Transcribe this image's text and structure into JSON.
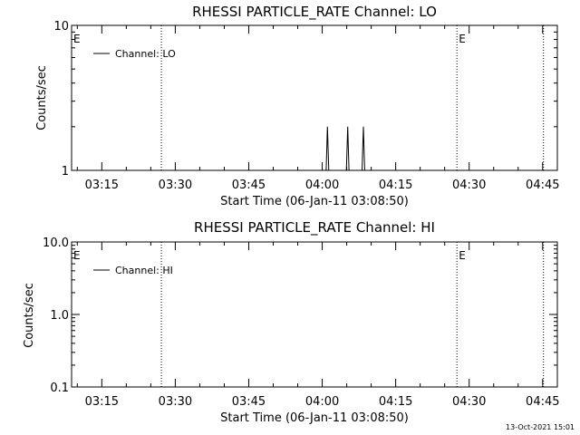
{
  "chart_data": [
    {
      "type": "line",
      "title": "RHESSI PARTICLE_RATE Channel: LO",
      "xlabel": "Start Time (06-Jan-11 03:08:50)",
      "ylabel": "Counts/sec",
      "y_scale": "log",
      "xlim": [
        "03:08:50",
        "04:48:00"
      ],
      "ylim": [
        1,
        10
      ],
      "x_ticks": [
        "03:15",
        "03:30",
        "03:45",
        "04:00",
        "04:15",
        "04:30",
        "04:45"
      ],
      "y_ticks": [
        "1",
        "10"
      ],
      "legend": "top-left",
      "series": [
        {
          "name": "Channel: LO",
          "color": "#000000",
          "x": [
            "04:00:48",
            "04:01:04",
            "04:01:20",
            "04:04:56",
            "04:05:12",
            "04:05:28",
            "04:08:08",
            "04:08:24",
            "04:08:40"
          ],
          "y": [
            1,
            2,
            1,
            1,
            2,
            1,
            1,
            2,
            1
          ]
        }
      ],
      "vertical_lines": [
        "03:27:10",
        "04:27:30",
        "04:45:10"
      ],
      "eclipse_markers": [
        {
          "label": "E",
          "x": "03:08:50"
        },
        {
          "label": "E",
          "x": "04:27:30"
        }
      ]
    },
    {
      "type": "line",
      "title": "RHESSI PARTICLE_RATE Channel: HI",
      "xlabel": "Start Time (06-Jan-11 03:08:50)",
      "ylabel": "Counts/sec",
      "y_scale": "log",
      "xlim": [
        "03:08:50",
        "04:48:00"
      ],
      "ylim": [
        0.1,
        10
      ],
      "x_ticks": [
        "03:15",
        "03:30",
        "03:45",
        "04:00",
        "04:15",
        "04:30",
        "04:45"
      ],
      "y_ticks": [
        "0.1",
        "1.0",
        "10.0"
      ],
      "legend": "top-left",
      "series": [
        {
          "name": "Channel: HI",
          "color": "#000000",
          "x": [],
          "y": []
        }
      ],
      "vertical_lines": [
        "03:27:10",
        "04:27:30",
        "04:45:10"
      ],
      "eclipse_markers": [
        {
          "label": "E",
          "x": "03:08:50"
        },
        {
          "label": "E",
          "x": "04:27:30"
        }
      ]
    }
  ],
  "footer": {
    "timestamp": "13-Oct-2021 15:01"
  }
}
